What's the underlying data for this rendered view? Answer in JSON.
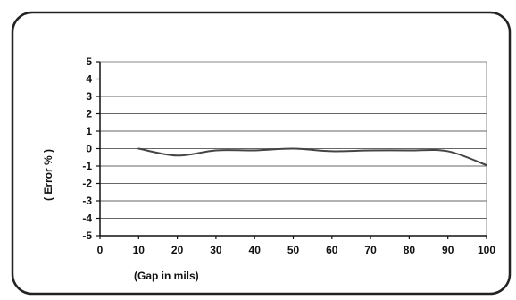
{
  "chart_data": {
    "type": "line",
    "title": "",
    "xlabel": "(Gap in mils)",
    "ylabel": "( Error % )",
    "xlim": [
      0,
      100
    ],
    "ylim": [
      -5,
      5
    ],
    "xticks": [
      0,
      10,
      20,
      30,
      40,
      50,
      60,
      70,
      80,
      90,
      100
    ],
    "yticks": [
      5,
      4,
      3,
      2,
      1,
      0,
      -1,
      -2,
      -3,
      -4,
      -5
    ],
    "grid": "horizontal",
    "legend": "none",
    "series": [
      {
        "color": "#444444",
        "x": [
          10,
          20,
          30,
          40,
          50,
          60,
          70,
          80,
          90,
          100
        ],
        "y": [
          0,
          -0.4,
          -0.1,
          -0.1,
          0,
          -0.15,
          -0.1,
          -0.1,
          -0.15,
          -0.95
        ]
      }
    ]
  },
  "colors": {
    "frame": "#222222",
    "grid": "#666666",
    "plot_border": "#888888"
  }
}
